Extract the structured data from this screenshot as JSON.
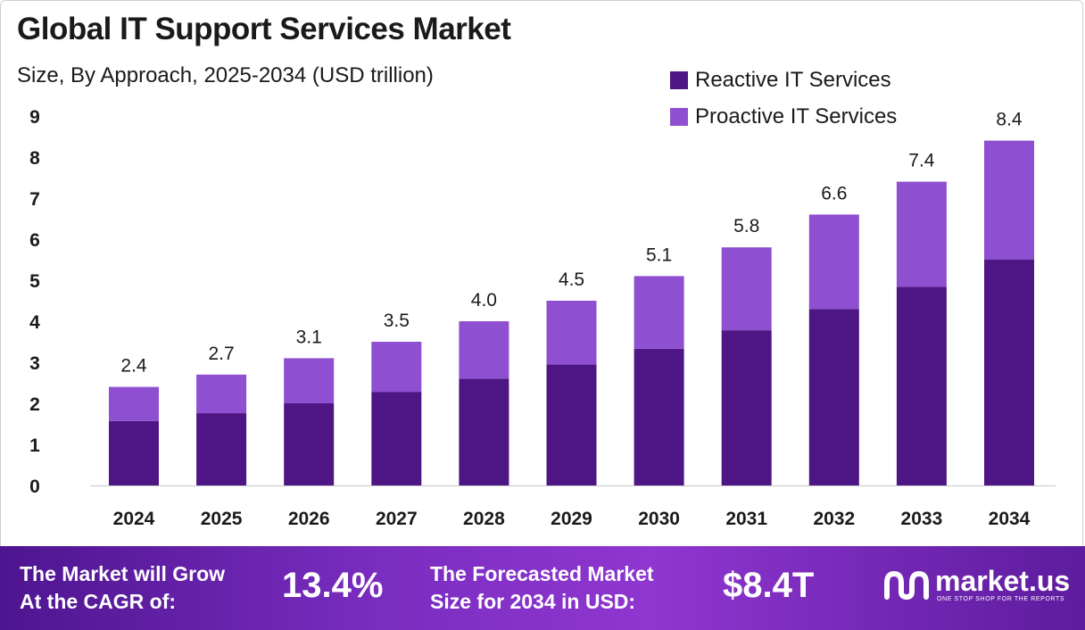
{
  "header": {
    "title": "Global IT Support Services Market",
    "subtitle": "Size, By Approach, 2025-2034 (USD trillion)"
  },
  "colors": {
    "reactive": "#4e1585",
    "proactive": "#8e50d0",
    "axis_text": "#1a1a1a"
  },
  "legend": {
    "items": [
      {
        "label": "Reactive IT Services",
        "color": "#4e1585"
      },
      {
        "label": "Proactive IT Services",
        "color": "#8e50d0"
      }
    ]
  },
  "chart_data": {
    "type": "bar",
    "stacked": true,
    "title": "Global IT Support Services Market",
    "subtitle": "Size, By Approach, 2025-2034 (USD trillion)",
    "categories": [
      "2024",
      "2025",
      "2026",
      "2027",
      "2028",
      "2029",
      "2030",
      "2031",
      "2032",
      "2033",
      "2034"
    ],
    "series": [
      {
        "name": "Reactive IT Services",
        "values": [
          1.57,
          1.76,
          2.0,
          2.28,
          2.6,
          2.95,
          3.33,
          3.78,
          4.3,
          4.84,
          5.5
        ]
      },
      {
        "name": "Proactive IT Services",
        "values": [
          0.83,
          0.94,
          1.1,
          1.22,
          1.4,
          1.55,
          1.77,
          2.02,
          2.3,
          2.56,
          2.9
        ]
      }
    ],
    "totals": [
      "2.4",
      "2.7",
      "3.1",
      "3.5",
      "4.0",
      "4.5",
      "5.1",
      "5.8",
      "6.6",
      "7.4",
      "8.4"
    ],
    "yticks": [
      "0",
      "1",
      "2",
      "3",
      "4",
      "5",
      "6",
      "7",
      "8",
      "9"
    ],
    "ylim": [
      0,
      9
    ],
    "legend_position": "top-right",
    "grid": false
  },
  "footer": {
    "cagr_label_line1": "The Market will Grow",
    "cagr_label_line2": "At the CAGR of:",
    "cagr_value": "13.4%",
    "forecast_label_line1": "The Forecasted Market",
    "forecast_label_line2": "Size for 2034 in USD:",
    "forecast_value": "$8.4T",
    "brand_name": "market.us",
    "brand_tagline": "ONE STOP SHOP FOR THE REPORTS"
  }
}
